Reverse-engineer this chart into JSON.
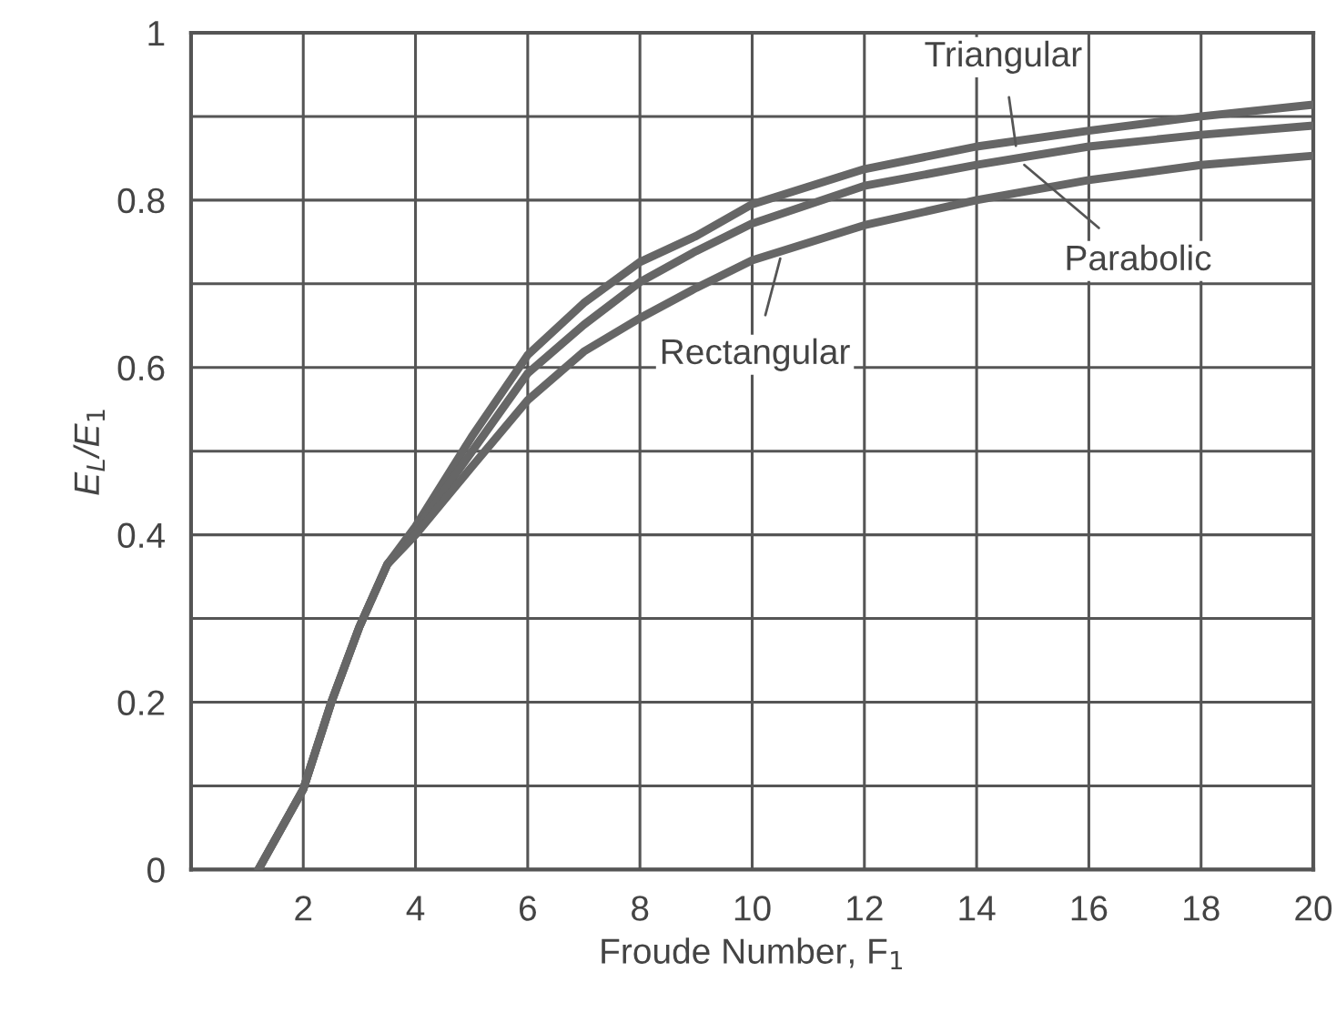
{
  "chart_data": {
    "type": "line",
    "xlabel": "Froude Number, F$_{1}$",
    "ylabel": "E$_{L}$/E$_{1}$",
    "xlim": [
      0,
      20
    ],
    "xticks": [
      2,
      4,
      6,
      8,
      10,
      12,
      14,
      16,
      18,
      20
    ],
    "ylim": [
      0,
      1
    ],
    "yticks": [
      0,
      {
        "value": 0.1,
        "label": null
      },
      0.2,
      {
        "value": 0.3,
        "label": null
      },
      0.4,
      {
        "value": 0.5,
        "label": null
      },
      0.6,
      {
        "value": 0.7,
        "label": null
      },
      0.8,
      {
        "value": 0.9,
        "label": null
      },
      1
    ],
    "grid": true,
    "marker": "none",
    "line_style": "solid",
    "series": [
      {
        "color": "#666666",
        "x": [
          1.2,
          2,
          2.5,
          3,
          3.5,
          4,
          5,
          6,
          7,
          8,
          9,
          10,
          12,
          14,
          16,
          18,
          20
        ],
        "values": [
          0,
          0.096,
          0.2,
          0.29,
          0.365,
          0.41,
          0.517,
          0.615,
          0.677,
          0.726,
          0.757,
          0.795,
          0.837,
          0.864,
          0.883,
          0.9,
          0.914
        ]
      },
      {
        "color": "#666666",
        "x": [
          1.2,
          2,
          2.5,
          3,
          3.5,
          4,
          5,
          6,
          7,
          8,
          9,
          10,
          12,
          14,
          16,
          18,
          20
        ],
        "values": [
          0,
          0.096,
          0.2,
          0.29,
          0.365,
          0.405,
          0.499,
          0.593,
          0.651,
          0.702,
          0.739,
          0.772,
          0.817,
          0.842,
          0.864,
          0.878,
          0.889
        ]
      },
      {
        "color": "#666666",
        "x": [
          1.2,
          2,
          2.5,
          3,
          3.5,
          4,
          5,
          6,
          7,
          8,
          9,
          10,
          12,
          14,
          16,
          18,
          20
        ],
        "values": [
          0,
          0.096,
          0.2,
          0.29,
          0.365,
          0.4,
          0.481,
          0.561,
          0.619,
          0.659,
          0.695,
          0.728,
          0.77,
          0.8,
          0.824,
          0.842,
          0.853
        ]
      }
    ],
    "annotations": [
      {
        "text": "Triangular",
        "x": 14.7,
        "y": 0.865
      },
      {
        "text": "Parabolic",
        "x": 14.85,
        "y": 0.842
      },
      {
        "text": "Rectangular",
        "x": 10.5,
        "y": 0.73
      }
    ]
  }
}
